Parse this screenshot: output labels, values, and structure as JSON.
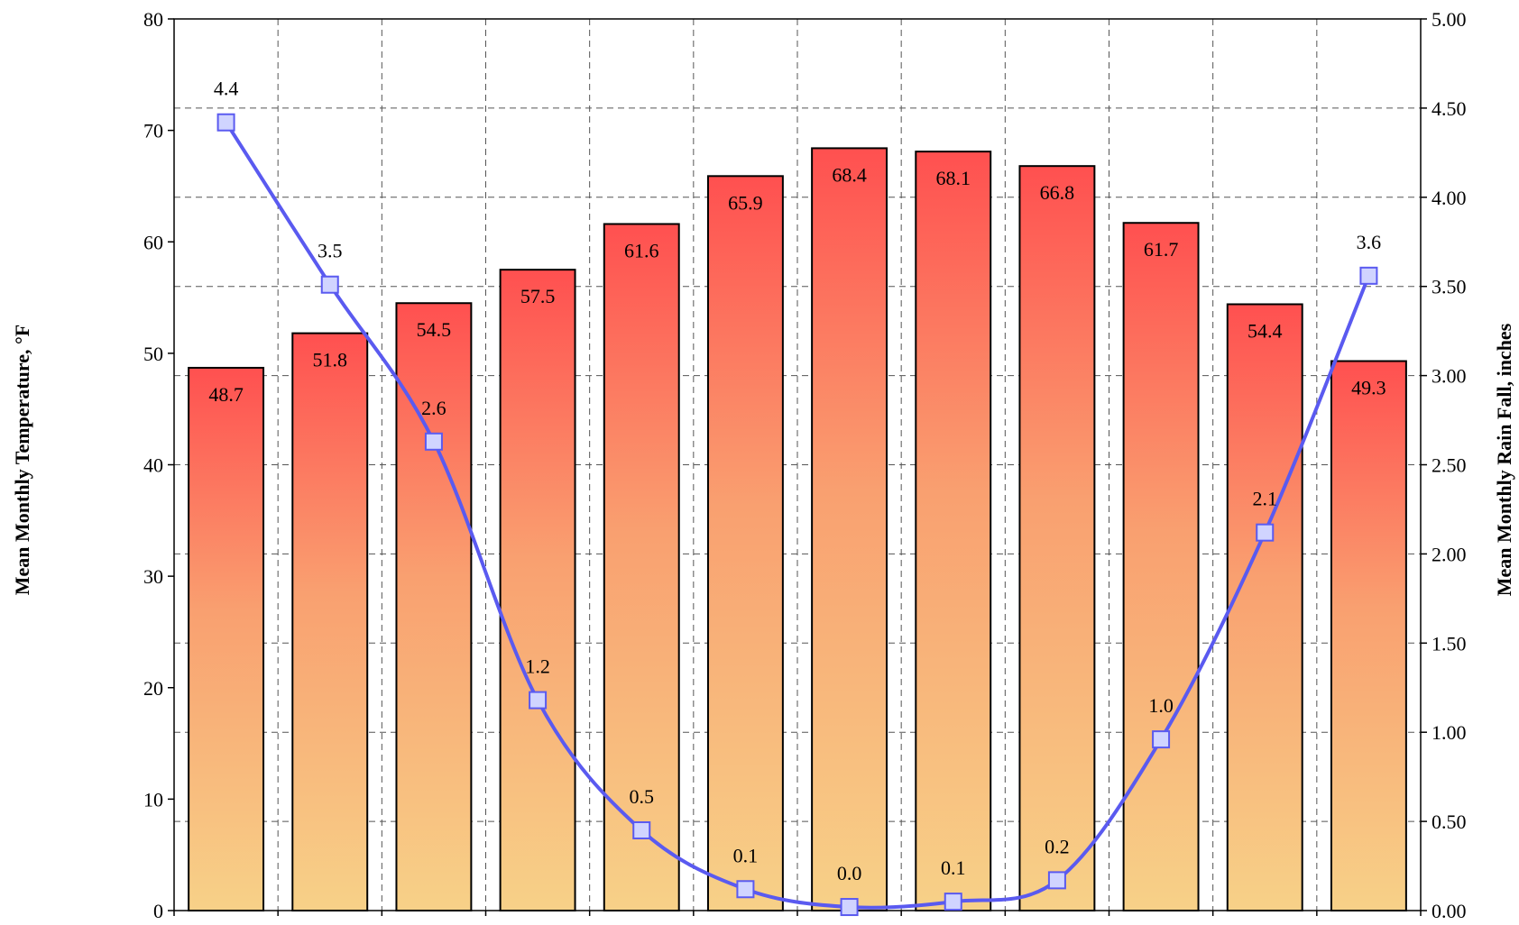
{
  "chart_data": {
    "type": "bar",
    "title": "",
    "categories": [
      "",
      "",
      "",
      "",
      "",
      "",
      "",
      "",
      "",
      "",
      "",
      ""
    ],
    "ylabel_left": "Mean Monthly Temperature, °F",
    "ylabel_right": "Mean Monthly Rain Fall, inches",
    "ylim_left": [
      0,
      80
    ],
    "ylim_right": [
      0,
      5
    ],
    "yticks_left": [
      "0",
      "10",
      "20",
      "30",
      "40",
      "50",
      "60",
      "70",
      "80"
    ],
    "yticks_right": [
      "0.00",
      "0.50",
      "1.00",
      "1.50",
      "2.00",
      "2.50",
      "3.00",
      "3.50",
      "4.00",
      "4.50",
      "5.00"
    ],
    "grid": true,
    "series": [
      {
        "type": "bar",
        "axis": "left",
        "values": [
          48.7,
          51.8,
          54.5,
          57.5,
          61.6,
          65.9,
          68.4,
          68.1,
          66.8,
          61.7,
          54.4,
          49.3
        ],
        "labels": [
          "48.7",
          "51.8",
          "54.5",
          "57.5",
          "61.6",
          "65.9",
          "68.4",
          "68.1",
          "66.8",
          "61.7",
          "54.4",
          "49.3"
        ]
      },
      {
        "type": "line",
        "axis": "right",
        "values": [
          4.42,
          3.51,
          2.63,
          1.18,
          0.45,
          0.12,
          0.02,
          0.05,
          0.17,
          0.96,
          2.12,
          3.56
        ],
        "labels": [
          "4.4",
          "3.5",
          "2.6",
          "1.2",
          "0.5",
          "0.1",
          "0.0",
          "0.1",
          "0.2",
          "1.0",
          "2.1",
          "3.6"
        ]
      }
    ],
    "colors": {
      "bar_top": "#ff5050",
      "bar_mid": "#f9a070",
      "bar_bottom": "#f7d188",
      "line": "#5a5af0",
      "marker_fill": "#d0d4ff",
      "grid": "#555555"
    }
  }
}
